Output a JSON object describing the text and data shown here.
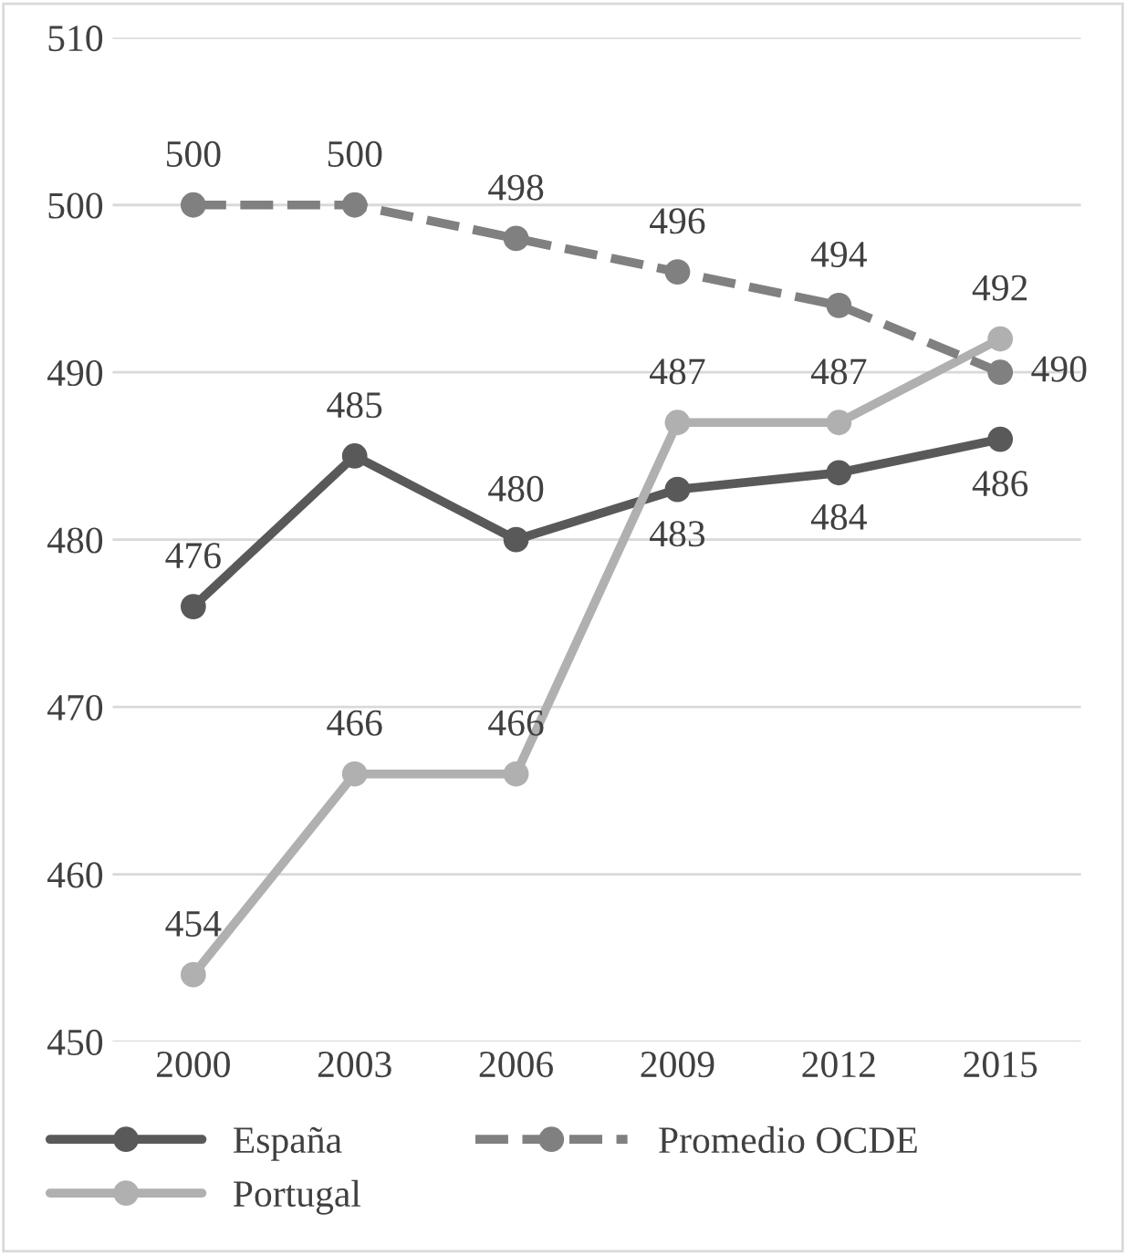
{
  "chart_data": {
    "type": "line",
    "categories": [
      "2000",
      "2003",
      "2006",
      "2009",
      "2012",
      "2015"
    ],
    "series": [
      {
        "name": "España",
        "color": "#595959",
        "values": [
          476,
          485,
          480,
          483,
          484,
          486
        ]
      },
      {
        "name": "Portugal",
        "color": "#b0b0b0",
        "values": [
          454,
          466,
          466,
          487,
          487,
          492
        ]
      },
      {
        "name": "Promedio OCDE",
        "color": "#808080",
        "line_style": "dashed",
        "values": [
          500,
          500,
          498,
          496,
          494,
          490
        ]
      }
    ],
    "ylim": [
      450,
      510
    ],
    "yticks": [
      450,
      460,
      470,
      480,
      490,
      500,
      510
    ],
    "grid": "y",
    "legend": "bottom",
    "marker": "circle",
    "line_style": "solid",
    "data_labels": true
  }
}
